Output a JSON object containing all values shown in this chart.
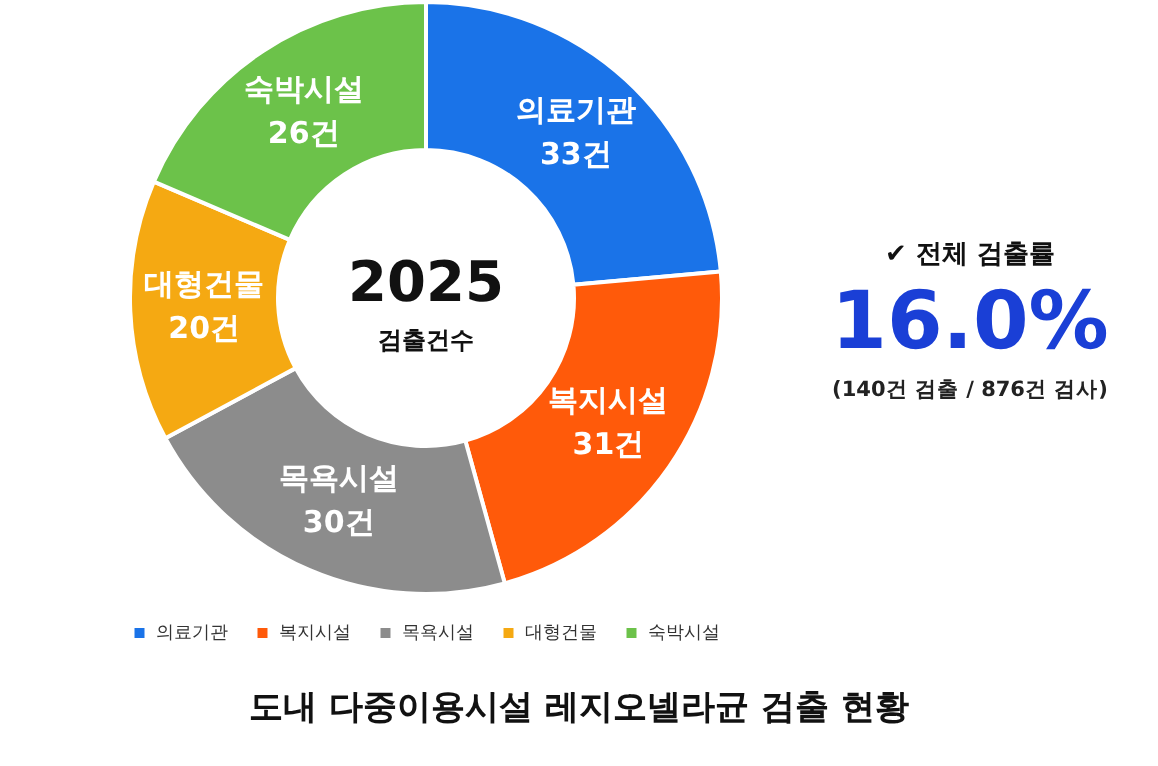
{
  "chart_data": {
    "type": "donut",
    "title": "도내 다중이용시설 레지오넬라균 검출 현황",
    "categories": [
      "의료기관",
      "복지시설",
      "목욕시설",
      "대형건물",
      "숙박시설"
    ],
    "values": [
      33,
      31,
      30,
      20,
      26
    ],
    "colors": [
      "#1a73e8",
      "#ff5a0a",
      "#8c8c8c",
      "#f5a912",
      "#6cc24a"
    ],
    "value_labels": [
      "33건",
      "31건",
      "30건",
      "20건",
      "26건"
    ],
    "legend": "bottom",
    "annotations": [
      "2025",
      "검출건수",
      "✔ 전체 검출률",
      "16.0%",
      "(140건 검출 / 876건 검사)"
    ]
  }
}
